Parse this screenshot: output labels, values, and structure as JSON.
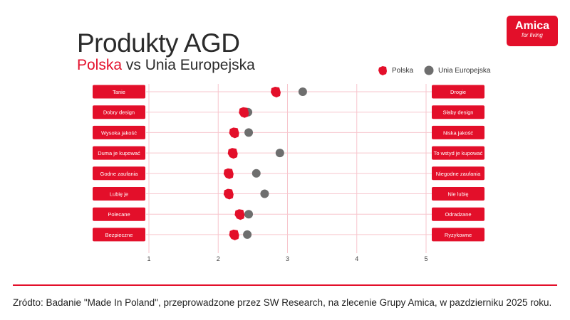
{
  "title": "Produkty AGD",
  "subtitle": {
    "highlight": "Polska",
    "rest": " vs Unia Europejska"
  },
  "logo": {
    "brand": "Amica",
    "tagline": "for living"
  },
  "footer": "Zródto: Badanie \"Made In Poland\", przeprowadzone przez SW Research, na zlecenie Grupy Amica, w pazdzierniku 2025 roku.",
  "colors": {
    "accent": "#e30f2a",
    "eu": "#6e6e6e",
    "grid": "#f7c6cd"
  },
  "chart_data": {
    "type": "scatter",
    "xlim": [
      1,
      5
    ],
    "xticks": [
      "1",
      "2",
      "3",
      "4",
      "5"
    ],
    "grid": true,
    "legend_position": "top-right",
    "categories_left": [
      "Tanie",
      "Dobry design",
      "Wysoka jakość",
      "Duma je kupować",
      "Godne zaufania",
      "Lubię je",
      "Polecane",
      "Bezpieczne"
    ],
    "categories_right": [
      "Drogie",
      "Słaby design",
      "Niska jakość",
      "To wstyd je kupować",
      "Niegodne zaufania",
      "Nie lubię",
      "Odradzane",
      "Ryzykowne"
    ],
    "series": [
      {
        "name": "Polska",
        "marker": "poland-shape",
        "values": [
          2.83,
          2.37,
          2.23,
          2.21,
          2.15,
          2.15,
          2.31,
          2.23
        ]
      },
      {
        "name": "Unia Europejska",
        "marker": "circle",
        "values": [
          3.22,
          2.43,
          2.44,
          2.89,
          2.55,
          2.67,
          2.44,
          2.42
        ]
      }
    ]
  }
}
